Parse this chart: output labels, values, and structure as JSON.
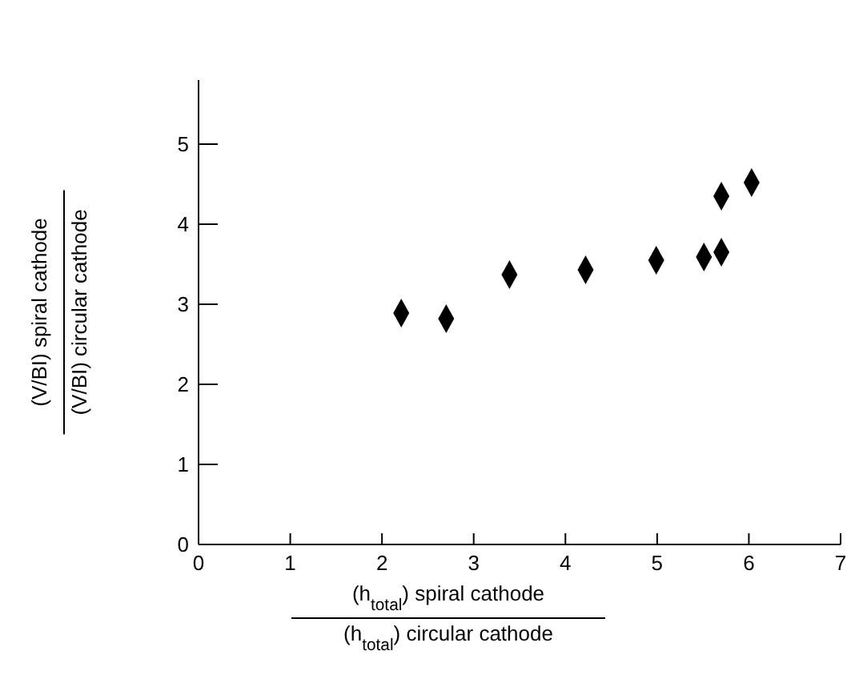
{
  "chart_data": {
    "type": "scatter",
    "xlabel": "(h$_{total}$) spiral cathode (h$_{total}$) circular cathode",
    "ylabel": "(V/BI) spiral cathode (V/BI) circular cathode",
    "x": [
      2.21,
      2.7,
      3.39,
      4.22,
      4.99,
      5.51,
      5.7,
      5.7,
      6.03
    ],
    "values": [
      2.89,
      2.82,
      3.37,
      3.43,
      3.55,
      3.59,
      3.65,
      4.35,
      4.52
    ],
    "color": "#000000",
    "marker": "diamond",
    "xlim": [
      0,
      7
    ],
    "ylim": [
      0,
      5.8
    ],
    "xticks": [
      0,
      1,
      2,
      3,
      4,
      5,
      6,
      7
    ],
    "yticks": [
      0,
      1,
      2,
      3,
      4,
      5
    ],
    "grid": false
  }
}
